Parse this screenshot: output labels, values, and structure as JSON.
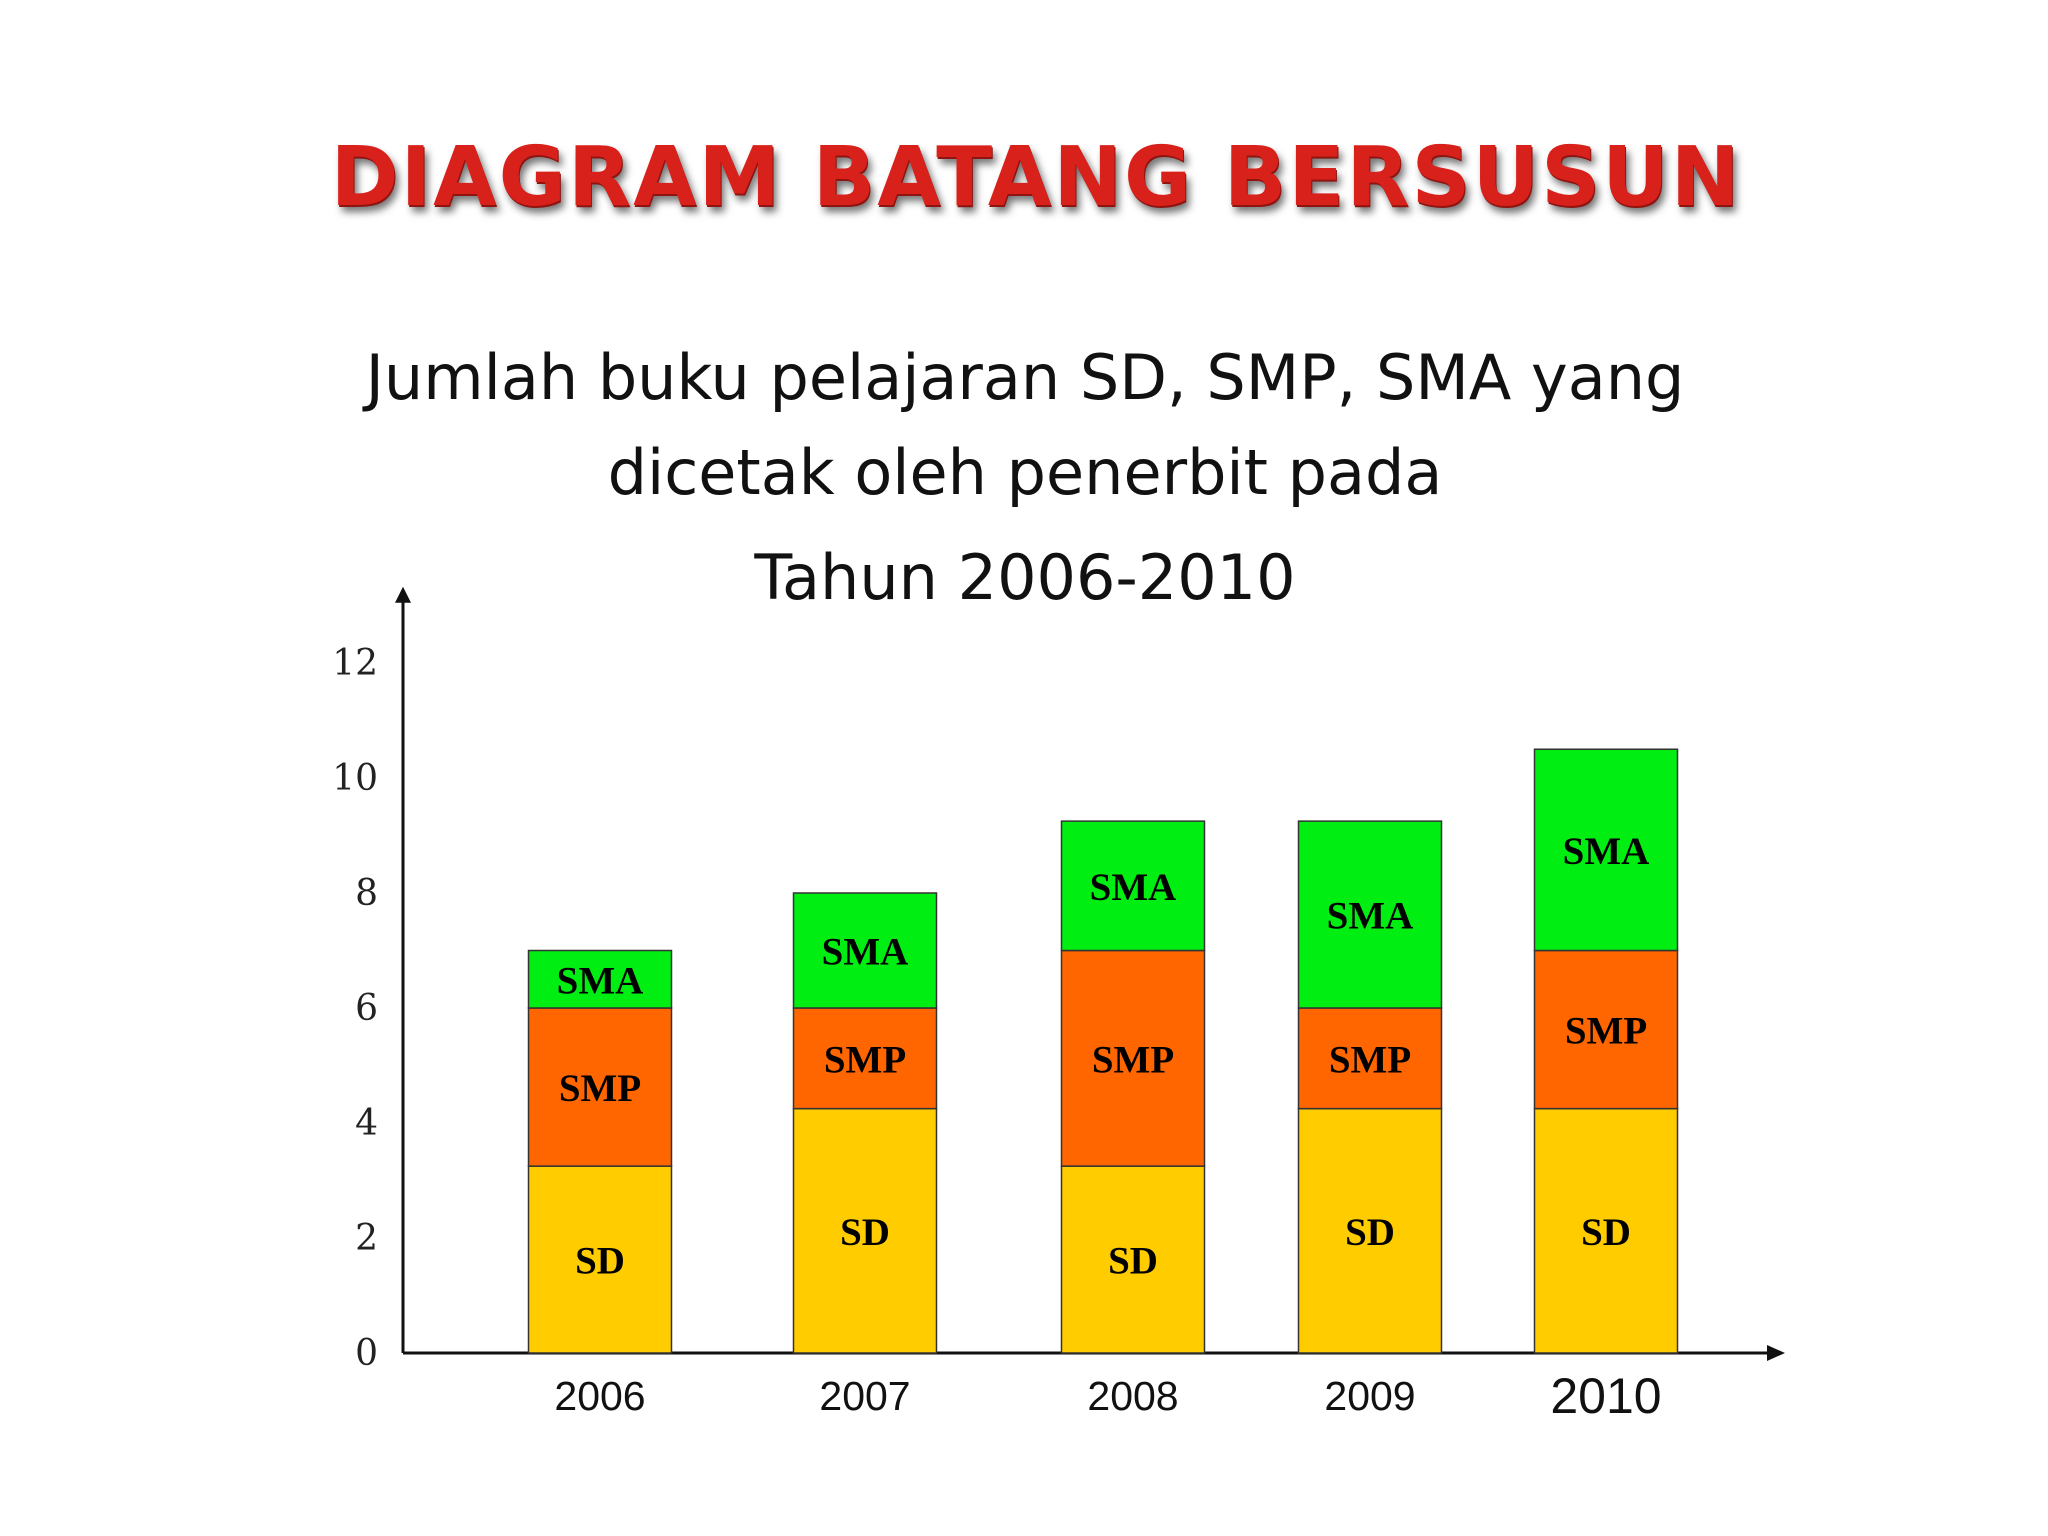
{
  "slide_title": "DIAGRAM BATANG BERSUSUN",
  "chart_title_lines": [
    "Jumlah buku pelajaran SD, SMP, SMA  yang",
    "dicetak oleh penerbit pada",
    "Tahun  2006-2010"
  ],
  "chart_data": {
    "type": "bar",
    "stacked": true,
    "title": "Jumlah buku pelajaran SD, SMP, SMA  yang dicetak oleh penerbit pada Tahun  2006-2010",
    "xlabel": "",
    "ylabel": "",
    "categories": [
      "2006",
      "2007",
      "2008",
      "2009",
      "2010"
    ],
    "yticks": [
      0,
      2,
      4,
      6,
      8,
      10,
      12
    ],
    "ylim": [
      0,
      13.5
    ],
    "grid": false,
    "legend": "none; segment labels printed inside bars",
    "series": [
      {
        "name": "SD",
        "color": "#ffcc00",
        "values": [
          3.25,
          4.25,
          3.25,
          4.25,
          4.25
        ]
      },
      {
        "name": "SMP",
        "color": "#ff6600",
        "values": [
          2.75,
          1.75,
          3.75,
          1.75,
          2.75
        ]
      },
      {
        "name": "SMA",
        "color": "#00ee11",
        "values": [
          1.0,
          2.0,
          2.25,
          3.25,
          3.5
        ]
      }
    ]
  }
}
